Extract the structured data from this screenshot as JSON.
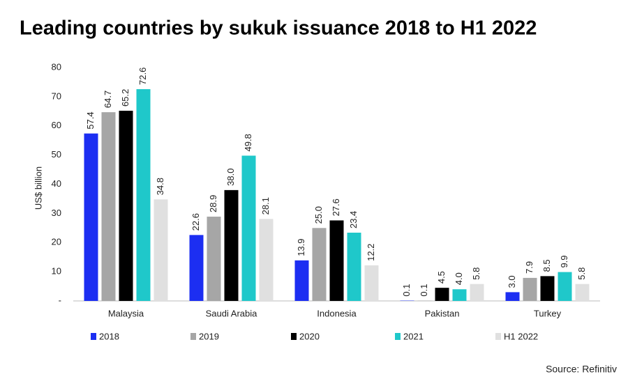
{
  "chart_data": {
    "type": "bar",
    "title": "Leading countries by sukuk issuance 2018 to H1 2022",
    "y_label": "US$ billion",
    "source": "Source: Refinitiv",
    "categories": [
      "Malaysia",
      "Saudi Arabia",
      "Indonesia",
      "Pakistan",
      "Turkey"
    ],
    "series": [
      {
        "name": "2018",
        "color": "#1c2ef2",
        "values": [
          57.4,
          22.6,
          13.9,
          0.1,
          3.0
        ],
        "value_labels": [
          "57.4",
          "22.6",
          "13.9",
          "0.1",
          "3.0"
        ]
      },
      {
        "name": "2019",
        "color": "#a6a6a6",
        "values": [
          64.7,
          28.9,
          25.0,
          0.1,
          7.9
        ],
        "value_labels": [
          "64.7",
          "28.9",
          "25.0",
          "0.1",
          "7.9"
        ]
      },
      {
        "name": "2020",
        "color": "#000000",
        "values": [
          65.2,
          38.0,
          27.6,
          4.5,
          8.5
        ],
        "value_labels": [
          "65.2",
          "38.0",
          "27.6",
          "4.5",
          "8.5"
        ]
      },
      {
        "name": "2021",
        "color": "#1fc8ca",
        "values": [
          72.6,
          49.8,
          23.4,
          4.0,
          9.9
        ],
        "value_labels": [
          "72.6",
          "49.8",
          "23.4",
          "4.0",
          "9.9"
        ]
      },
      {
        "name": "H1 2022",
        "color": "#e0e0e0",
        "values": [
          34.8,
          28.1,
          12.2,
          5.8,
          5.8
        ],
        "value_labels": [
          "34.8",
          "28.1",
          "12.2",
          "5.8",
          "5.8"
        ]
      }
    ],
    "ylim": [
      0,
      80
    ],
    "yticks": [
      {
        "value": 0,
        "label": "-"
      },
      10,
      20,
      30,
      40,
      50,
      60,
      70,
      80
    ],
    "grid": false
  }
}
